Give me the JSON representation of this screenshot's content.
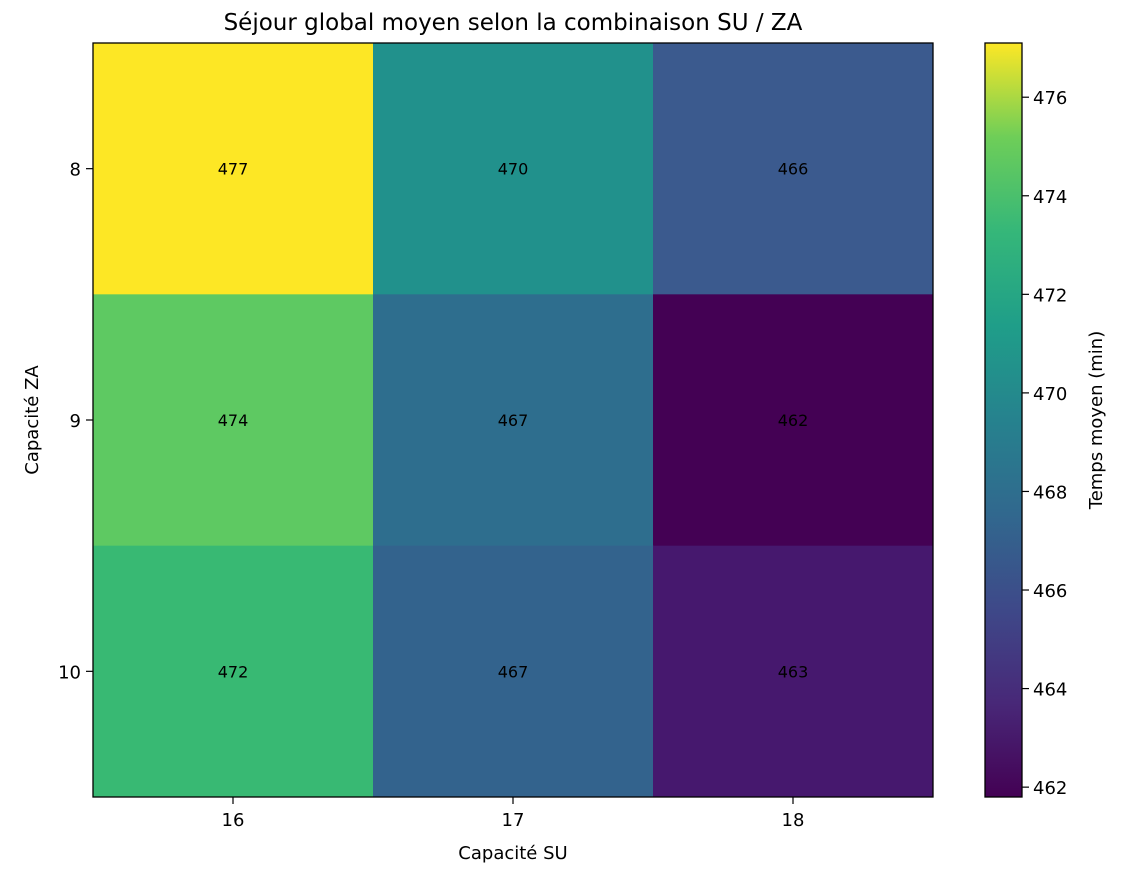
{
  "chart_data": {
    "type": "heatmap",
    "title": "Séjour global moyen selon la combinaison SU / ZA",
    "xlabel": "Capacité SU",
    "ylabel": "Capacité ZA",
    "x_categories": [
      "16",
      "17",
      "18"
    ],
    "y_categories": [
      "8",
      "9",
      "10"
    ],
    "values": [
      [
        477,
        470,
        466
      ],
      [
        474,
        467,
        462
      ],
      [
        472,
        467,
        463
      ]
    ],
    "cell_colors": [
      [
        "#fde725",
        "#21918c",
        "#3b5a8e"
      ],
      [
        "#5ec962",
        "#2e6e8e",
        "#440154"
      ],
      [
        "#38b973",
        "#33638d",
        "#46186e"
      ]
    ],
    "colorbar": {
      "label": "Temps moyen (min)",
      "range": [
        461.8,
        477.1
      ],
      "ticks": [
        "462",
        "464",
        "466",
        "468",
        "470",
        "472",
        "474",
        "476"
      ],
      "colormap": "viridis"
    },
    "grid": false,
    "legend": "none"
  }
}
